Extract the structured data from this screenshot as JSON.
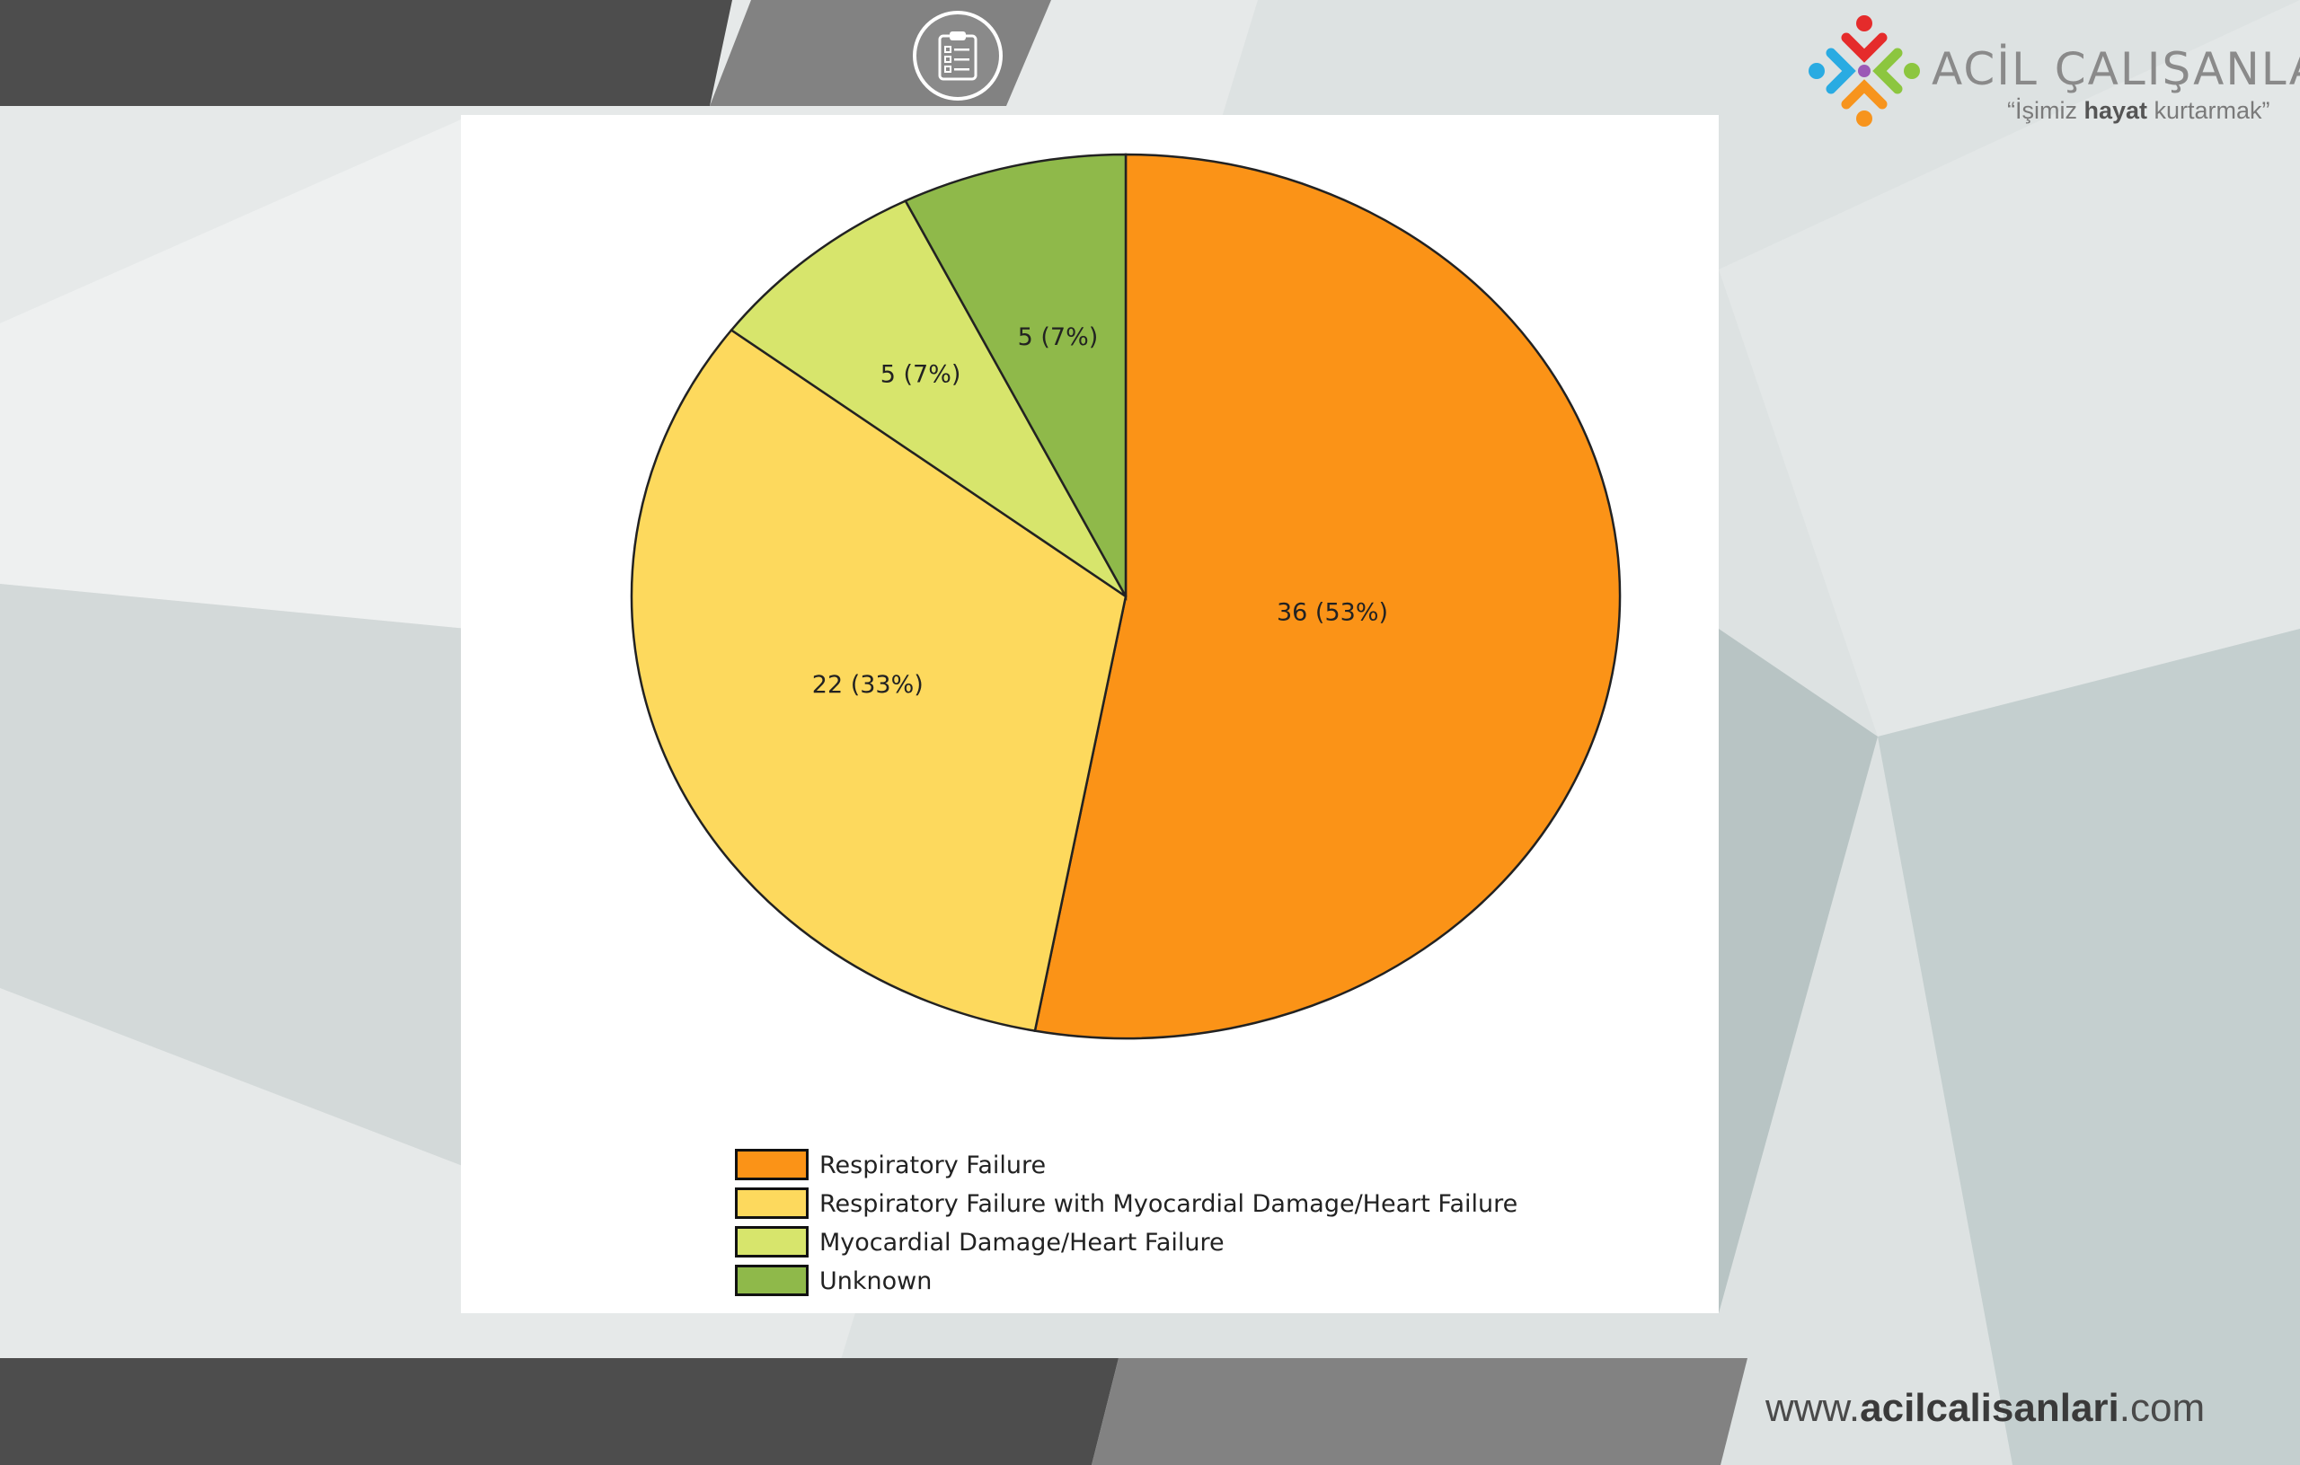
{
  "brand": {
    "name": "ACİL ÇALIŞANLARI",
    "slogan_open": "“İşimiz ",
    "slogan_bold": "hayat",
    "slogan_close": " kurtarmak”"
  },
  "footer": {
    "url_prefix": "www.",
    "url_bold": "acilcalisanlari",
    "url_suffix": ".com"
  },
  "icons": {
    "toolbar": "clipboard-checklist-icon",
    "brand": "people-circle-logo-icon"
  },
  "colors": {
    "dark_band": "#4d4d4d",
    "mid_band": "#828282",
    "pie_outline": "#222222"
  },
  "chart_data": {
    "type": "pie",
    "start_angle_deg": 0,
    "direction": "clockwise",
    "slices": [
      {
        "label": "Respiratory Failure",
        "value": 36,
        "percent": 53,
        "data_label": "36 (53%)",
        "color": "#fb9317"
      },
      {
        "label": "Respiratory Failure with Myocardial Damage/Heart Failure",
        "value": 22,
        "percent": 33,
        "data_label": "22 (33%)",
        "color": "#fdd95d"
      },
      {
        "label": "Myocardial Damage/Heart Failure",
        "value": 5,
        "percent": 7,
        "data_label": "5 (7%)",
        "color": "#d7e56c"
      },
      {
        "label": "Unknown",
        "value": 5,
        "percent": 7,
        "data_label": "5 (7%)",
        "color": "#8fb94a"
      }
    ],
    "legend_position": "bottom"
  }
}
